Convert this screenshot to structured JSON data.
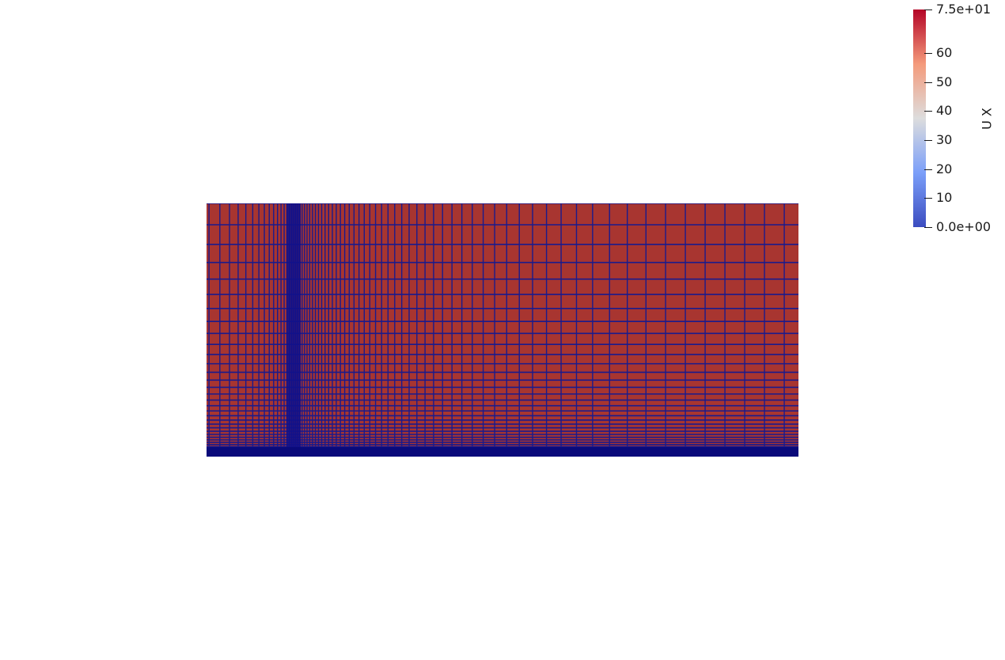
{
  "scalar_field": "U X",
  "colorbar": {
    "title": "U X",
    "min": 0,
    "max": 75,
    "labels": [
      {
        "text": "7.5e+01",
        "value": 75
      },
      {
        "text": "60",
        "value": 60
      },
      {
        "text": "50",
        "value": 50
      },
      {
        "text": "40",
        "value": 40
      },
      {
        "text": "30",
        "value": 30
      },
      {
        "text": "20",
        "value": 20
      },
      {
        "text": "10",
        "value": 10
      },
      {
        "text": "0.0e+00",
        "value": 0
      }
    ],
    "colormap": "Cool to Warm",
    "colors": {
      "low": "#3b4cc0",
      "mid": "#dddddd",
      "high": "#b40426"
    }
  },
  "mesh": {
    "fill_color": "#a83530",
    "edge_color": "#1a1a8c",
    "wall_color": "#0a0a7a",
    "refinement": "clustered toward bottom wall and near obstacle column"
  }
}
